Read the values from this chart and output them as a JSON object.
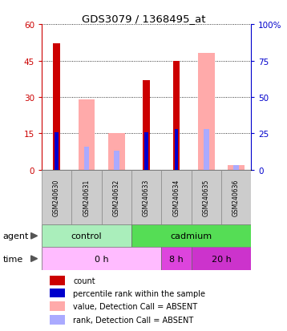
{
  "title": "GDS3079 / 1368495_at",
  "samples": [
    "GSM240630",
    "GSM240631",
    "GSM240632",
    "GSM240633",
    "GSM240634",
    "GSM240635",
    "GSM240636"
  ],
  "count_values": [
    52,
    0,
    0,
    37,
    45,
    0,
    0
  ],
  "rank_values": [
    26,
    0,
    0,
    26,
    28,
    0,
    0
  ],
  "absent_value_bars": [
    0,
    29,
    15,
    0,
    0,
    48,
    2
  ],
  "absent_rank_bars": [
    0,
    16,
    13,
    0,
    0,
    28,
    3
  ],
  "ylim_left": [
    0,
    60
  ],
  "ylim_right": [
    0,
    100
  ],
  "yticks_left": [
    0,
    15,
    30,
    45,
    60
  ],
  "yticks_right": [
    0,
    25,
    50,
    75,
    100
  ],
  "ytick_labels_left": [
    "0",
    "15",
    "30",
    "45",
    "60"
  ],
  "ytick_labels_right": [
    "0",
    "25",
    "50",
    "75",
    "100%"
  ],
  "color_count": "#cc0000",
  "color_rank": "#0000cc",
  "color_absent_value": "#ffaaaa",
  "color_absent_rank": "#aaaaff",
  "agent_groups": [
    {
      "label": "control",
      "span": [
        0,
        3
      ],
      "color": "#aaeebb"
    },
    {
      "label": "cadmium",
      "span": [
        3,
        7
      ],
      "color": "#55dd55"
    }
  ],
  "time_groups": [
    {
      "label": "0 h",
      "span": [
        0,
        4
      ],
      "color": "#ffbbff"
    },
    {
      "label": "8 h",
      "span": [
        4,
        5
      ],
      "color": "#dd44dd"
    },
    {
      "label": "20 h",
      "span": [
        5,
        7
      ],
      "color": "#cc33cc"
    }
  ],
  "legend_items": [
    {
      "label": "count",
      "color": "#cc0000"
    },
    {
      "label": "percentile rank within the sample",
      "color": "#0000cc"
    },
    {
      "label": "value, Detection Call = ABSENT",
      "color": "#ffaaaa"
    },
    {
      "label": "rank, Detection Call = ABSENT",
      "color": "#aaaaff"
    }
  ],
  "grid_color": "#000000",
  "bg_color": "#ffffff",
  "sample_box_color": "#cccccc"
}
